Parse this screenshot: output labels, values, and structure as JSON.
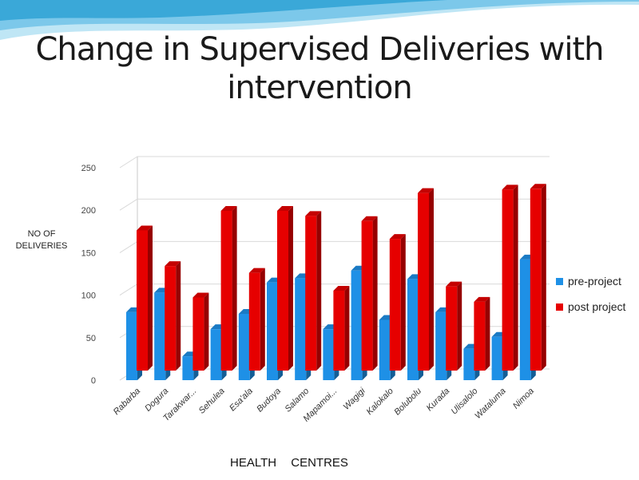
{
  "slide": {
    "title_line1": "Change in Supervised Deliveries with",
    "title_line2": "intervention"
  },
  "chart_data": {
    "type": "bar",
    "title": "Change in Supervised Deliveries with intervention",
    "xlabel": "HEALTH    CENTRES",
    "ylabel_line1": "NO OF",
    "ylabel_line2": "DELIVERIES",
    "ylim": [
      0,
      250
    ],
    "yticks": [
      0,
      50,
      100,
      150,
      200,
      250
    ],
    "grid": true,
    "legend_position": "right",
    "categories": [
      "Rabarba",
      "Dogura",
      "Tarakwar...",
      "Sehulea",
      "Esa'ala",
      "Budoya",
      "Salamo",
      "Mapamoi...",
      "Wagigi",
      "Kalokalo",
      "Bolubolu",
      "Kurada",
      "Ulisalolo",
      "Wataluma",
      "Nimoa"
    ],
    "series": [
      {
        "name": "pre-project",
        "color": "#1e90e6",
        "values": [
          80,
          103,
          28,
          60,
          78,
          115,
          120,
          60,
          129,
          71,
          119,
          80,
          37,
          51,
          142
        ]
      },
      {
        "name": "post project",
        "color": "#e60000",
        "values": [
          165,
          123,
          86,
          188,
          115,
          188,
          182,
          94,
          176,
          155,
          209,
          99,
          81,
          213,
          214
        ]
      }
    ]
  }
}
